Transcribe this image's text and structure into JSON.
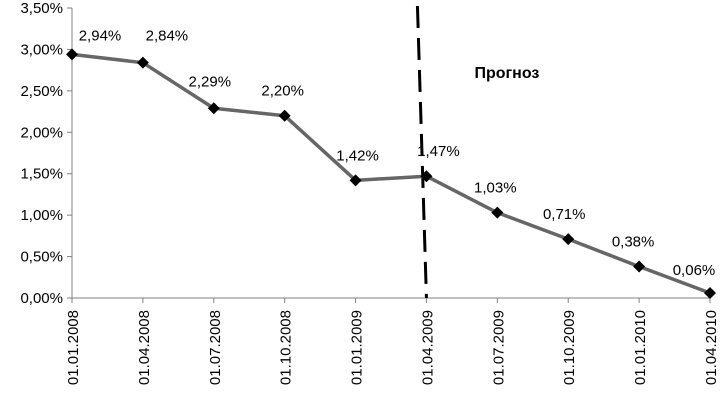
{
  "chart_data": {
    "type": "line",
    "title": "",
    "xlabel": "",
    "ylabel": "",
    "ylim": [
      0,
      3.5
    ],
    "y_ticks": [
      "0,00%",
      "0,50%",
      "1,00%",
      "1,50%",
      "2,00%",
      "2,50%",
      "3,00%",
      "3,50%"
    ],
    "categories": [
      "01.01.2008",
      "01.04.2008",
      "01.07.2008",
      "01.10.2008",
      "01.01.2009",
      "01.04.2009",
      "01.07.2009",
      "01.10.2009",
      "01.01.2010",
      "01.04.2010"
    ],
    "values": [
      2.94,
      2.84,
      2.29,
      2.2,
      1.42,
      1.47,
      1.03,
      0.71,
      0.38,
      0.06
    ],
    "data_labels": [
      "2,94%",
      "2,84%",
      "2,29%",
      "2,20%",
      "1,42%",
      "1,47%",
      "1,03%",
      "0,71%",
      "0,38%",
      "0,06%"
    ],
    "forecast_divider_category": "01.04.2009",
    "annotation": "Прогноз",
    "grid": false,
    "legend": "none",
    "colors": {
      "line": "#666666",
      "marker": "#000000",
      "divider": "#000000",
      "axis": "#808080"
    }
  }
}
